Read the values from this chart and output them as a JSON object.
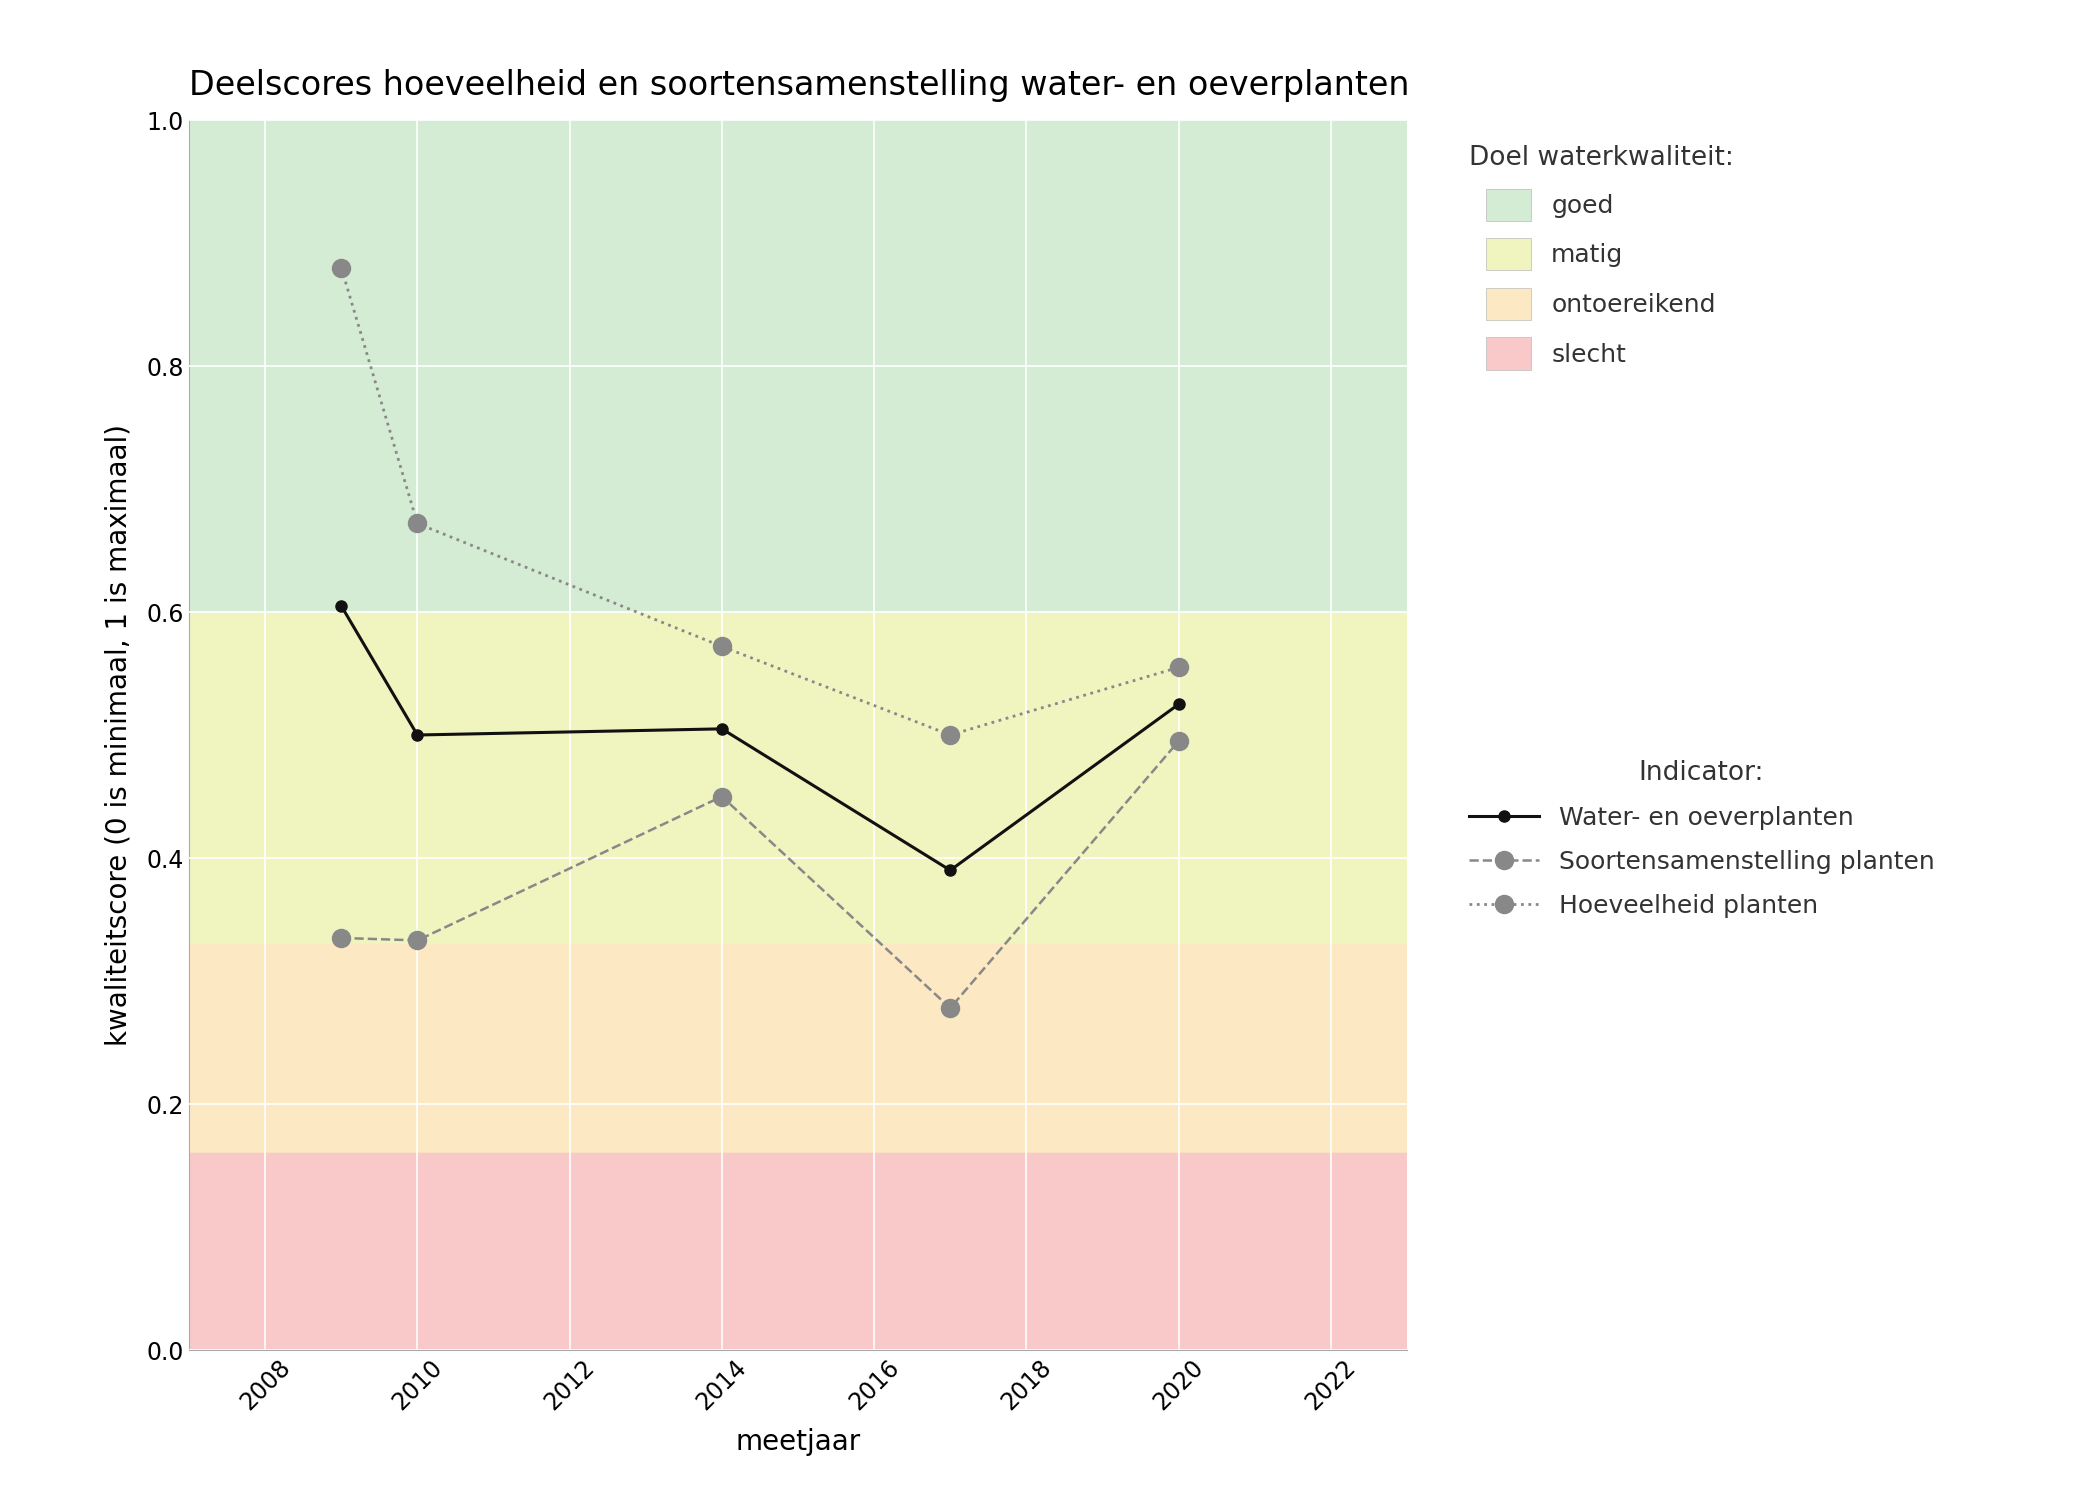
{
  "title": "Deelscores hoeveelheid en soortensamenstelling water- en oeverplanten",
  "xlabel": "meetjaar",
  "ylabel": "kwaliteitscore (0 is minimaal, 1 is maximaal)",
  "xlim": [
    2007,
    2023
  ],
  "ylim": [
    0.0,
    1.0
  ],
  "xticks": [
    2008,
    2010,
    2012,
    2014,
    2016,
    2018,
    2020,
    2022
  ],
  "yticks": [
    0.0,
    0.2,
    0.4,
    0.6,
    0.8,
    1.0
  ],
  "bg_bands": [
    {
      "key": "goed",
      "color": "#d5ecd4",
      "ymin": 0.6,
      "ymax": 1.0,
      "label": "goed"
    },
    {
      "key": "matig",
      "color": "#f0f5c0",
      "ymin": 0.33,
      "ymax": 0.6,
      "label": "matig"
    },
    {
      "key": "ontoereikend",
      "color": "#fce8c3",
      "ymin": 0.16,
      "ymax": 0.33,
      "label": "ontoereikend"
    },
    {
      "key": "slecht",
      "color": "#f9c9c9",
      "ymin": 0.0,
      "ymax": 0.16,
      "label": "slecht"
    }
  ],
  "line_water_en_oever": {
    "x": [
      2009,
      2010,
      2014,
      2017,
      2020
    ],
    "y": [
      0.605,
      0.5,
      0.505,
      0.39,
      0.525
    ],
    "color": "#111111",
    "linestyle": "-",
    "linewidth": 2.2,
    "marker": "o",
    "markersize": 8,
    "label": "Water- en oeverplanten"
  },
  "line_soortensamenstelling": {
    "x": [
      2009,
      2010,
      2014,
      2017,
      2020
    ],
    "y": [
      0.335,
      0.333,
      0.45,
      0.278,
      0.495
    ],
    "color": "#888888",
    "linestyle": "--",
    "linewidth": 1.8,
    "marker": "o",
    "markersize": 13,
    "label": "Soortensamenstelling planten"
  },
  "line_hoeveelheid": {
    "x": [
      2009,
      2010,
      2014,
      2017,
      2020
    ],
    "y": [
      0.88,
      0.672,
      0.572,
      0.5,
      0.555
    ],
    "color": "#888888",
    "linestyle": ":",
    "linewidth": 2.0,
    "marker": "o",
    "markersize": 13,
    "label": "Hoeveelheid planten"
  },
  "legend_title_doel": "Doel waterkwaliteit:",
  "legend_title_indicator": "Indicator:",
  "grid_color": "#ffffff",
  "grid_linewidth": 1.2,
  "figure_facecolor": "#ffffff",
  "axes_facecolor": "#ffffff",
  "title_fontsize": 24,
  "label_fontsize": 20,
  "tick_fontsize": 17,
  "legend_fontsize": 18,
  "legend_title_fontsize": 19
}
